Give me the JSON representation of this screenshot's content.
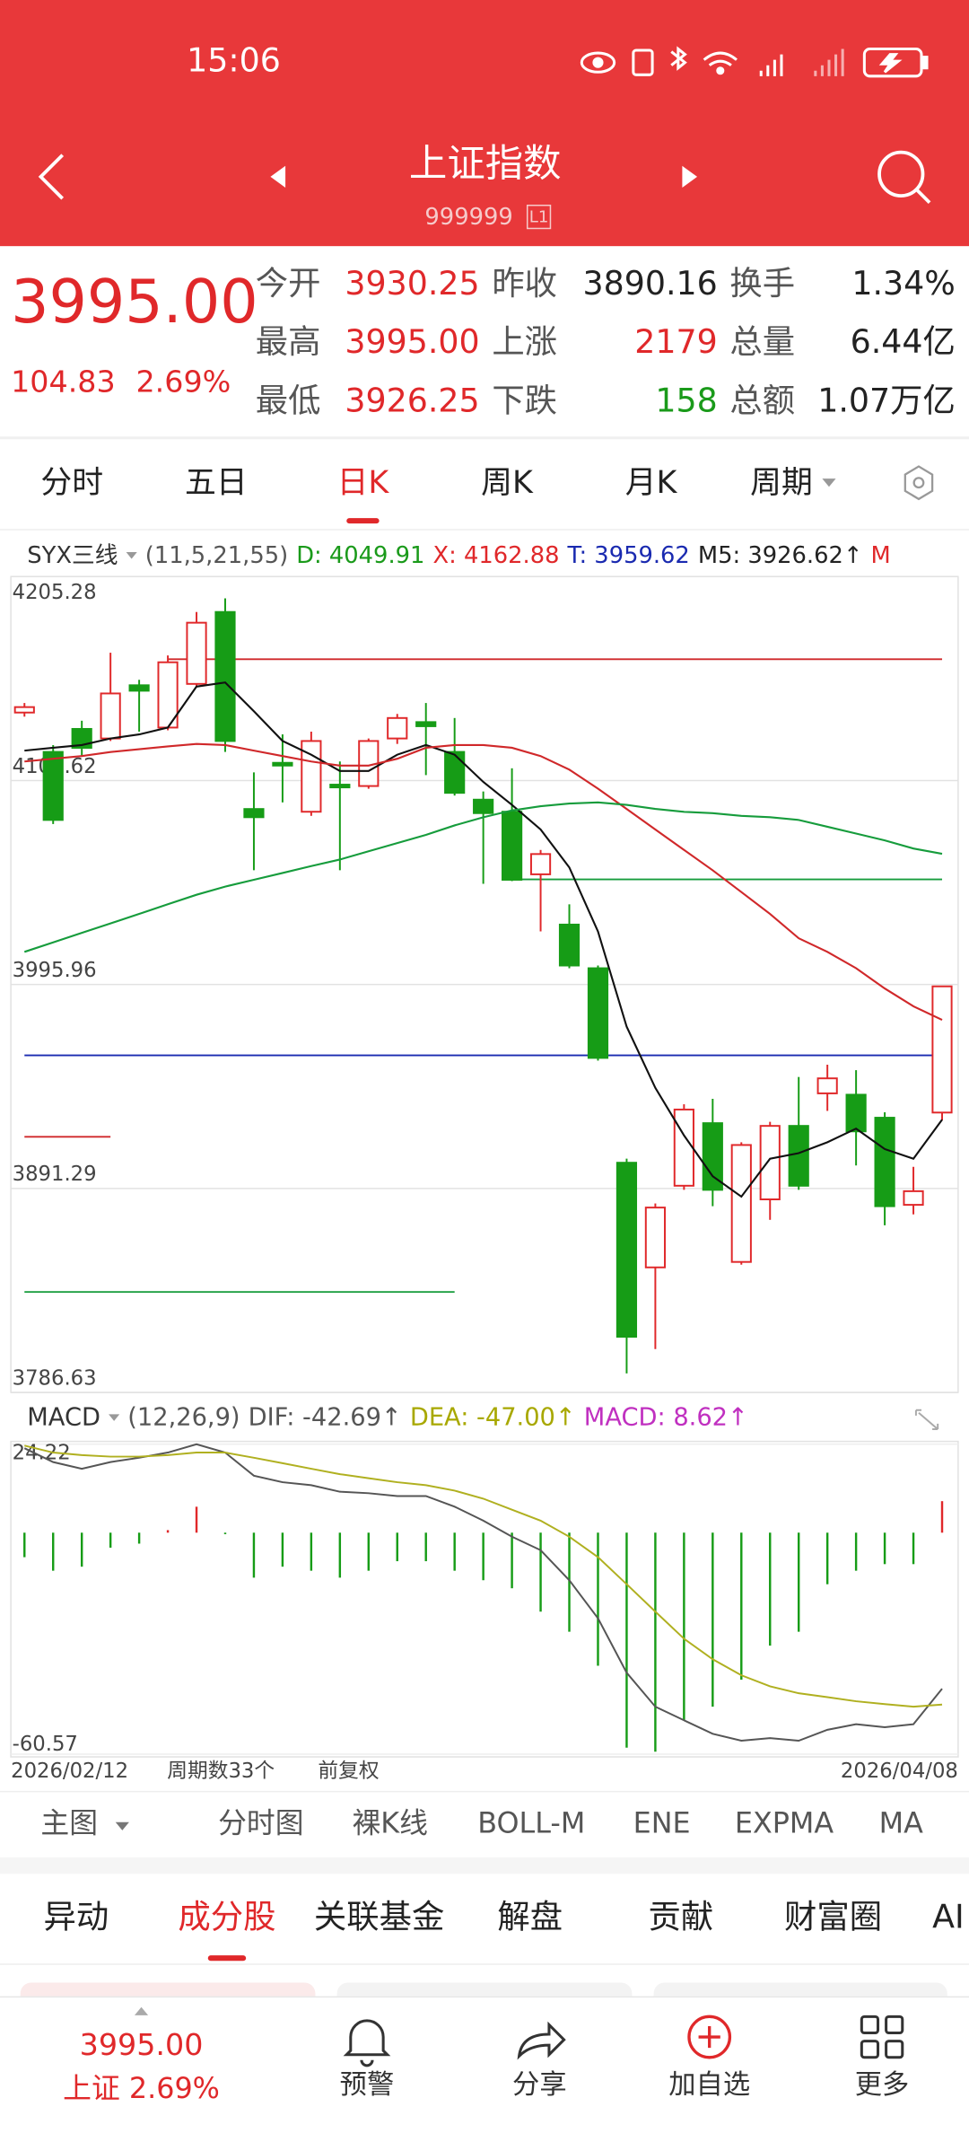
{
  "status": {
    "time": "15:06"
  },
  "header": {
    "title": "上证指数",
    "code": "999999",
    "level": "L1"
  },
  "quote": {
    "price": "3995.00",
    "change": "104.83",
    "change_pct": "2.69%"
  },
  "stats": [
    {
      "label": "今开",
      "value": "3930.25",
      "color": "#e0282a"
    },
    {
      "label": "昨收",
      "value": "3890.16",
      "color": "#222222"
    },
    {
      "label": "换手",
      "value": "1.34%",
      "color": "#222222"
    },
    {
      "label": "最高",
      "value": "3995.00",
      "color": "#e0282a"
    },
    {
      "label": "上涨",
      "value": "2179",
      "color": "#e0282a"
    },
    {
      "label": "总量",
      "value": "6.44亿",
      "color": "#222222"
    },
    {
      "label": "最低",
      "value": "3926.25",
      "color": "#e0282a"
    },
    {
      "label": "下跌",
      "value": "158",
      "color": "#1a9a1a"
    },
    {
      "label": "总额",
      "value": "1.07万亿",
      "color": "#222222"
    }
  ],
  "period_tabs": {
    "items": [
      "分时",
      "五日",
      "日K",
      "周K",
      "月K",
      "周期"
    ],
    "active": 2
  },
  "indicator": {
    "name": "SYX三线",
    "params": "(11,5,21,55)",
    "items": [
      {
        "text": "D: 4049.91",
        "color": "#1a9a1a"
      },
      {
        "text": "X: 4162.88",
        "color": "#e0282a"
      },
      {
        "text": "T: 3959.62",
        "color": "#1a2ab0"
      },
      {
        "text": "M5: 3926.62↑",
        "color": "#222222"
      },
      {
        "text": "M",
        "color": "#e0282a"
      }
    ]
  },
  "kline": {
    "ylim": [
      3786.63,
      4205.28
    ],
    "yticks": [
      4205.28,
      4100.62,
      3995.96,
      3891.29,
      3786.63
    ],
    "up_color": "#e0282a",
    "down_color": "#169c16",
    "open": [
      4135.5,
      4115.3,
      4127.1,
      4122.2,
      4149.5,
      4127.8,
      4150.2,
      4187.1,
      4086.0,
      4109.7,
      4084.6,
      4098.5,
      4097.8,
      4122.2,
      4130.6,
      4115.3,
      4090.8,
      4084.6,
      4052.5,
      4026.7,
      4004.3,
      3904.5,
      3850.8,
      3892.7,
      3924.8,
      3853.6,
      3885.7,
      3923.4,
      3940.1,
      3939.4,
      3927.6,
      3882.9,
      3930.25
    ],
    "high": [
      4140.4,
      4118.8,
      4131.3,
      4166.2,
      4152.3,
      4164.8,
      4187.1,
      4194.1,
      4104.8,
      4124.3,
      4125.7,
      4110.4,
      4122.2,
      4134.8,
      4140.4,
      4132.7,
      4095.0,
      4106.9,
      4065.0,
      4037.1,
      4005.7,
      3906.6,
      3883.6,
      3934.5,
      3937.3,
      3915.0,
      3925.5,
      3948.5,
      3954.8,
      3952.0,
      3930.4,
      3902.4,
      3995.0
    ],
    "low": [
      4133.4,
      4078.3,
      4113.2,
      4120.9,
      4125.7,
      4126.4,
      4148.8,
      4115.3,
      4054.6,
      4089.4,
      4082.5,
      4054.6,
      4096.4,
      4119.4,
      4103.4,
      4092.9,
      4047.6,
      4049.0,
      4023.2,
      4004.3,
      3956.9,
      3796.4,
      3808.9,
      3890.6,
      3882.2,
      3852.2,
      3875.2,
      3890.6,
      3931.1,
      3903.1,
      3872.4,
      3878.0,
      3926.25
    ],
    "close": [
      4138.3,
      4080.4,
      4117.4,
      4145.3,
      4146.7,
      4161.3,
      4181.6,
      4120.9,
      4081.8,
      4108.3,
      4120.9,
      4097.1,
      4120.9,
      4132.7,
      4128.5,
      4094.3,
      4083.9,
      4049.7,
      4062.9,
      4005.7,
      3958.3,
      3815.2,
      3881.5,
      3931.8,
      3890.6,
      3913.6,
      3923.4,
      3892.7,
      3947.8,
      3920.6,
      3882.2,
      3889.9,
      3995.0
    ],
    "lines": [
      {
        "color": "#111111",
        "values": [
          4116.0,
          4117.4,
          4118.8,
          4122.2,
          4124.3,
          4127.8,
          4148.8,
          4150.9,
          4136.2,
          4120.9,
          4113.9,
          4105.5,
          4105.5,
          4113.9,
          4118.8,
          4113.9,
          4099.9,
          4088.1,
          4075.5,
          4056.0,
          4023.2,
          3974.3,
          3942.9,
          3918.5,
          3897.6,
          3887.1,
          3906.6,
          3909.4,
          3915.0,
          3922.0,
          3911.5,
          3906.6,
          3926.62
        ]
      },
      {
        "color": "#d0282a",
        "values": [
          4110.4,
          4111.8,
          4113.2,
          4115.3,
          4116.7,
          4118.1,
          4119.4,
          4118.8,
          4116.0,
          4113.2,
          4110.4,
          4108.3,
          4108.3,
          4111.8,
          4117.4,
          4118.8,
          4118.8,
          4117.4,
          4113.2,
          4106.2,
          4096.4,
          4086.0,
          4075.5,
          4065.0,
          4054.6,
          4043.4,
          4032.2,
          4019.7,
          4012.7,
          4004.3,
          3993.9,
          3984.8,
          3977.8
        ]
      },
      {
        "color": "#169c3c",
        "values": [
          4012.7,
          4017.6,
          4022.5,
          4027.3,
          4032.2,
          4037.1,
          4042.0,
          4046.2,
          4049.7,
          4053.2,
          4056.7,
          4060.1,
          4064.3,
          4068.5,
          4072.7,
          4077.6,
          4081.8,
          4085.3,
          4087.4,
          4088.8,
          4089.4,
          4088.1,
          4086.0,
          4084.6,
          4083.9,
          4082.5,
          4081.8,
          4080.4,
          4076.9,
          4073.4,
          4069.9,
          4065.7,
          4063.0
        ]
      }
    ],
    "levels": [
      {
        "value": 4162.88,
        "color": "#d0282a",
        "from": 5,
        "to": 32
      },
      {
        "value": 4049.91,
        "color": "#169c3c",
        "from": 17,
        "to": 32
      },
      {
        "value": 3959.62,
        "color": "#1a2ab0",
        "from": 0,
        "to": 32
      },
      {
        "value": 3917.8,
        "color": "#d0282a",
        "from": 0,
        "to": 3
      },
      {
        "value": 3838.2,
        "color": "#169c3c",
        "from": 0,
        "to": 15
      }
    ]
  },
  "macd": {
    "name": "MACD",
    "params": "(12,26,9)",
    "items": [
      {
        "text": "DIF: -42.69↑",
        "color": "#555555"
      },
      {
        "text": "DEA: -47.00↑",
        "color": "#a8a800"
      },
      {
        "text": "MACD: 8.62↑",
        "color": "#c030c0"
      }
    ],
    "ylim": [
      -60.57,
      24.22
    ],
    "yticks": [
      24.22,
      -60.57
    ],
    "up_color": "#e0282a",
    "down_color": "#169c16",
    "dif_color": "#555555",
    "dea_color": "#b0b020",
    "histogram": [
      -6.7,
      -10.4,
      -9.3,
      -4.1,
      -3.0,
      0.7,
      7.1,
      -0.4,
      -12.3,
      -9.3,
      -10.4,
      -12.3,
      -10.4,
      -7.8,
      -7.8,
      -10.4,
      -13.0,
      -15.2,
      -21.6,
      -27.1,
      -36.4,
      -58.8,
      -59.9,
      -51.3,
      -47.6,
      -40.2,
      -30.9,
      -27.1,
      -14.1,
      -10.4,
      -8.6,
      -8.6,
      8.62
    ],
    "dif": [
      23.1,
      19.3,
      17.5,
      19.3,
      20.5,
      21.9,
      24.2,
      21.9,
      15.6,
      13.8,
      13.0,
      11.2,
      10.8,
      10.0,
      10.0,
      7.1,
      3.3,
      -1.1,
      -4.8,
      -13.0,
      -23.4,
      -38.3,
      -47.6,
      -51.3,
      -55.0,
      -56.9,
      -56.2,
      -56.9,
      -53.9,
      -52.4,
      -53.2,
      -52.4,
      -42.69
    ],
    "dea": [
      23.8,
      21.9,
      21.2,
      20.8,
      20.8,
      21.2,
      21.9,
      21.9,
      20.5,
      19.0,
      17.5,
      16.0,
      14.9,
      13.8,
      13.0,
      11.5,
      9.3,
      6.3,
      3.3,
      -1.1,
      -6.7,
      -14.1,
      -21.6,
      -29.0,
      -34.6,
      -39.0,
      -42.0,
      -43.9,
      -45.0,
      -46.1,
      -46.9,
      -47.6,
      -47.0
    ]
  },
  "dates": {
    "start": "2026/02/12",
    "count": "周期数33个",
    "adjust": "前复权",
    "end": "2026/04/08"
  },
  "indicator_tabs": [
    "主图",
    "分时图",
    "裸K线",
    "BOLL-M",
    "ENE",
    "EXPMA",
    "MA"
  ],
  "section_tabs": {
    "items": [
      "异动",
      "成分股",
      "关联基金",
      "解盘",
      "贡献",
      "财富圈",
      "AI"
    ],
    "active": 1
  },
  "bottom_bar": {
    "price": "3995.00",
    "label": "上证 2.69%",
    "actions": [
      "预警",
      "分享",
      "加自选",
      "更多"
    ]
  }
}
